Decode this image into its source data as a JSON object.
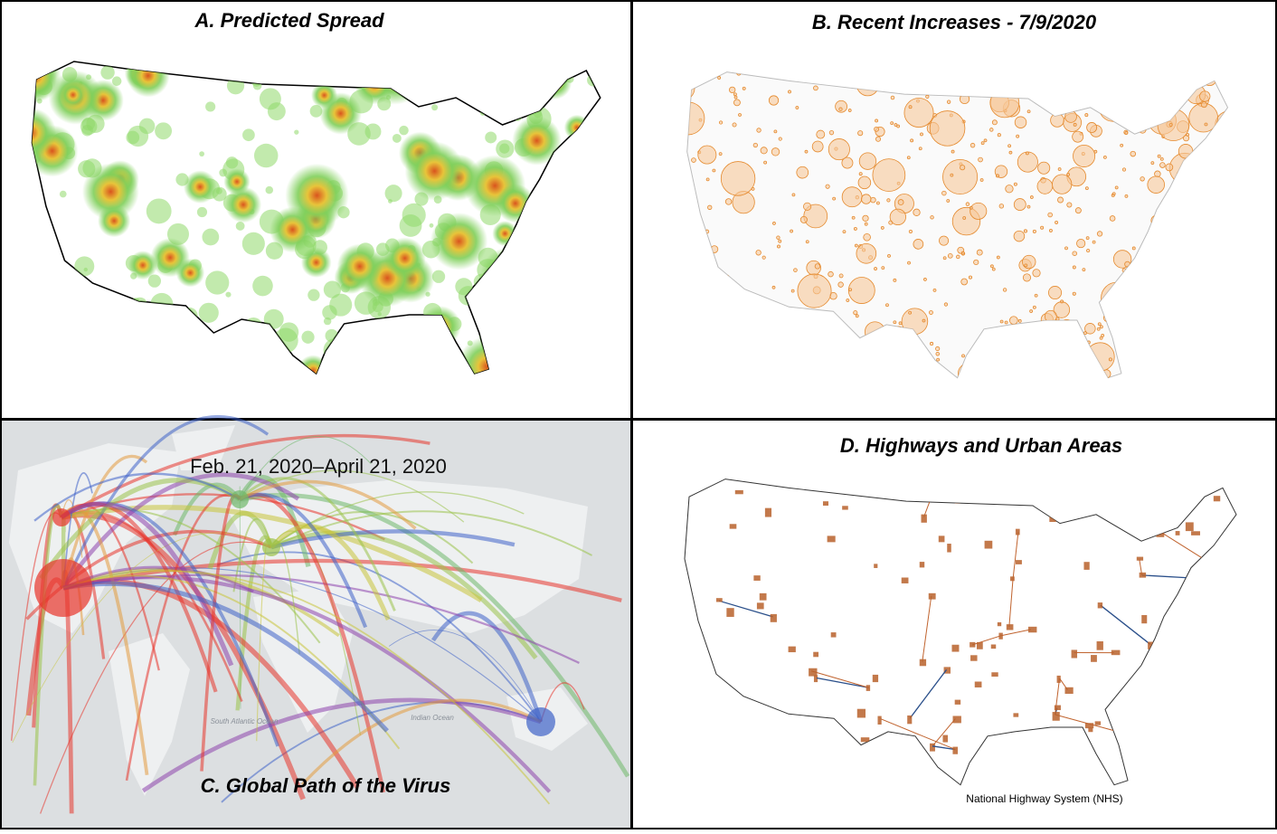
{
  "panels": [
    {
      "title": "A. Predicted Spread"
    },
    {
      "title": "B. Recent Increases -  7/9/2020"
    },
    {
      "title": "C. Global Path of the Virus",
      "date_range": "Feb. 21, 2020–April 21, 2020",
      "ocean_labels": [
        "South Atlantic Ocean",
        "Indian Ocean"
      ]
    },
    {
      "title": "D. Highways and Urban Areas",
      "caption": "National Highway System (NHS)"
    }
  ]
}
